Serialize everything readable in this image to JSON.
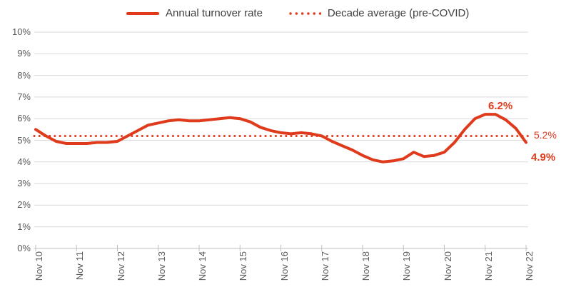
{
  "chart_data": {
    "type": "line",
    "title": "",
    "xlabel": "",
    "ylabel": "",
    "ylim": [
      0,
      10
    ],
    "grid": "horizontal",
    "legend_position": "top-center",
    "y_ticks": [
      "0%",
      "1%",
      "2%",
      "3%",
      "4%",
      "5%",
      "6%",
      "7%",
      "8%",
      "9%",
      "10%"
    ],
    "x_ticks": [
      "Nov 10",
      "Nov 11",
      "Nov 12",
      "Nov 13",
      "Nov 14",
      "Nov 15",
      "Nov 16",
      "Nov 17",
      "Nov 18",
      "Nov 19",
      "Nov 20",
      "Nov 21",
      "Nov 22"
    ],
    "series": [
      {
        "name": "Annual turnover rate",
        "style": "solid",
        "sampling": "quarterly, Nov 2010 through Nov 2022",
        "values": [
          5.5,
          5.2,
          4.95,
          4.85,
          4.85,
          4.85,
          4.9,
          4.9,
          4.95,
          5.2,
          5.45,
          5.7,
          5.8,
          5.9,
          5.95,
          5.9,
          5.9,
          5.95,
          6.0,
          6.05,
          6.0,
          5.85,
          5.6,
          5.45,
          5.35,
          5.3,
          5.35,
          5.3,
          5.2,
          4.95,
          4.75,
          4.55,
          4.3,
          4.1,
          4.0,
          4.05,
          4.15,
          4.45,
          4.25,
          4.3,
          4.45,
          4.9,
          5.5,
          6.0,
          6.2,
          6.2,
          5.95,
          5.55,
          4.9
        ]
      },
      {
        "name": "Decade average (pre-COVID)",
        "style": "dotted",
        "value": 5.2
      }
    ],
    "annotations": [
      {
        "text": "6.2%",
        "attached_to": "peak of turnover line near Nov 21",
        "bold": true
      },
      {
        "text": "5.2%",
        "attached_to": "decade average dotted line, right edge",
        "bold": false
      },
      {
        "text": "4.9%",
        "attached_to": "final turnover value at Nov 22",
        "bold": true
      }
    ],
    "colors": {
      "series": "#e03a1c",
      "grid": "#d9d9d9",
      "axis": "#bfbfbf",
      "tick_label": "#595959",
      "legend_text": "#3f3f3f",
      "background": "#ffffff"
    }
  }
}
